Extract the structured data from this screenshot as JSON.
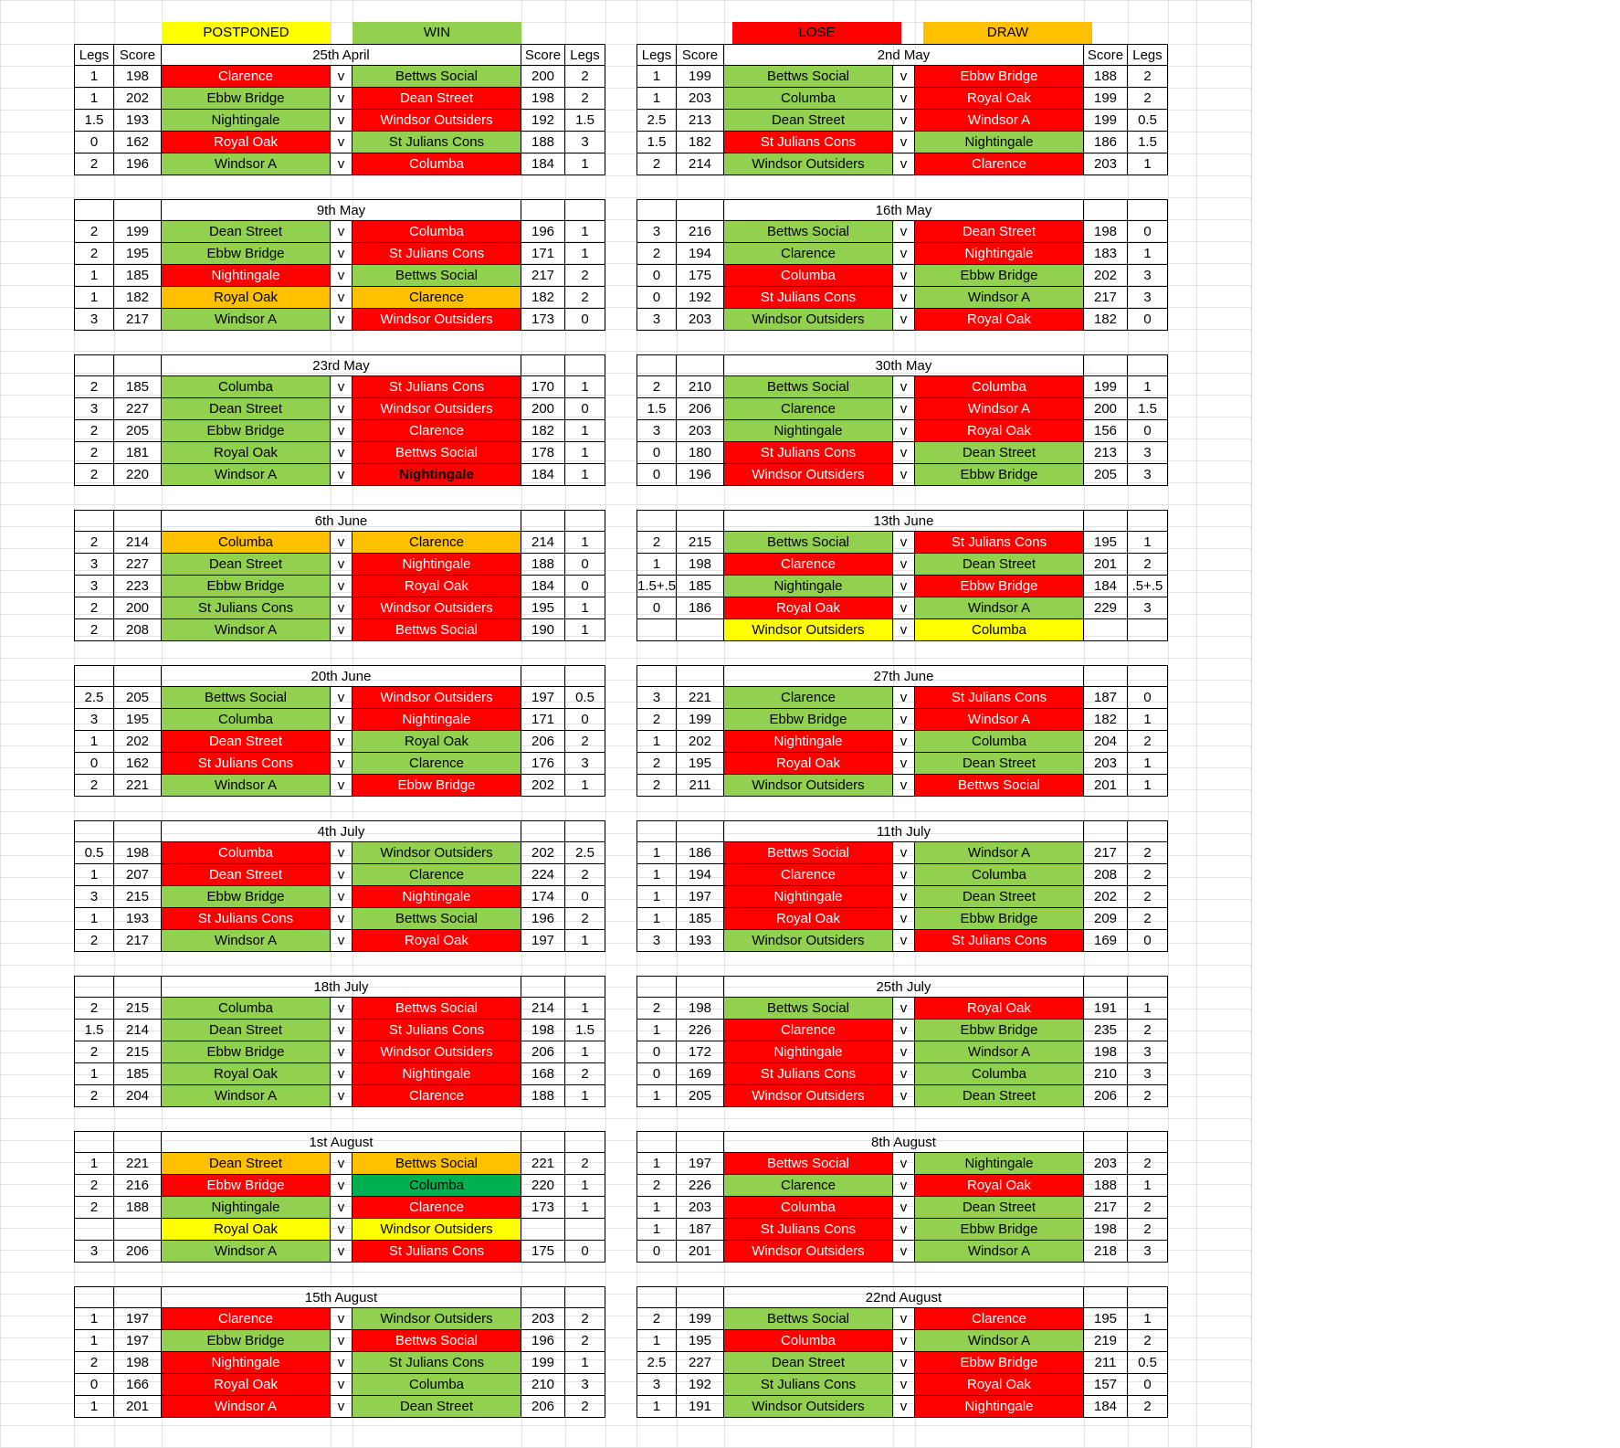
{
  "legend": [
    {
      "label": "POSTPONED",
      "color": "#ffff00"
    },
    {
      "label": "WIN",
      "color": "#92d050"
    },
    {
      "label": "LOSE",
      "color": "#ff0000"
    },
    {
      "label": "DRAW",
      "color": "#ffc000"
    }
  ],
  "headers": {
    "legs": "Legs",
    "score": "Score",
    "vs": "v"
  },
  "blocks": [
    {
      "date": "25th April",
      "header_labels": true,
      "matches": [
        [
          "1",
          "198",
          "Clarence",
          "r",
          "Bettws Social",
          "g",
          "200",
          "2"
        ],
        [
          "1",
          "202",
          "Ebbw Bridge",
          "g",
          "Dean Street",
          "r",
          "198",
          "2"
        ],
        [
          "1.5",
          "193",
          "Nightingale",
          "g",
          "Windsor Outsiders",
          "r",
          "192",
          "1.5"
        ],
        [
          "0",
          "162",
          "Royal Oak",
          "r",
          "St Julians Cons",
          "g",
          "188",
          "3"
        ],
        [
          "2",
          "196",
          "Windsor A",
          "g",
          "Columba",
          "r",
          "184",
          "1"
        ]
      ]
    },
    {
      "date": "2nd May",
      "header_labels": true,
      "matches": [
        [
          "1",
          "199",
          "Bettws Social",
          "g",
          "Ebbw Bridge",
          "r",
          "188",
          "2"
        ],
        [
          "1",
          "203",
          "Columba",
          "g",
          "Royal Oak",
          "r",
          "199",
          "2"
        ],
        [
          "2.5",
          "213",
          "Dean Street",
          "g",
          "Windsor A",
          "r",
          "199",
          "0.5"
        ],
        [
          "1.5",
          "182",
          "St Julians Cons",
          "r",
          "Nightingale",
          "g",
          "186",
          "1.5"
        ],
        [
          "2",
          "214",
          "Windsor Outsiders",
          "g",
          "Clarence",
          "r",
          "203",
          "1"
        ]
      ]
    },
    {
      "date": "9th May",
      "matches": [
        [
          "2",
          "199",
          "Dean Street",
          "g",
          "Columba",
          "r",
          "196",
          "1"
        ],
        [
          "2",
          "195",
          "Ebbw Bridge",
          "g",
          "St Julians Cons",
          "r",
          "171",
          "1"
        ],
        [
          "1",
          "185",
          "Nightingale",
          "r",
          "Bettws Social",
          "g",
          "217",
          "2"
        ],
        [
          "1",
          "182",
          "Royal Oak",
          "o",
          "Clarence",
          "o",
          "182",
          "2"
        ],
        [
          "3",
          "217",
          "Windsor A",
          "g",
          "Windsor Outsiders",
          "r",
          "173",
          "0"
        ]
      ]
    },
    {
      "date": "16th May",
      "matches": [
        [
          "3",
          "216",
          "Bettws Social",
          "g",
          "Dean Street",
          "r",
          "198",
          "0"
        ],
        [
          "2",
          "194",
          "Clarence",
          "g",
          "Nightingale",
          "r",
          "183",
          "1"
        ],
        [
          "0",
          "175",
          "Columba",
          "r",
          "Ebbw Bridge",
          "g",
          "202",
          "3"
        ],
        [
          "0",
          "192",
          "St Julians Cons",
          "r",
          "Windsor A",
          "g",
          "217",
          "3"
        ],
        [
          "3",
          "203",
          "Windsor Outsiders",
          "g",
          "Royal Oak",
          "r",
          "182",
          "0"
        ]
      ]
    },
    {
      "date": "23rd May",
      "matches": [
        [
          "2",
          "185",
          "Columba",
          "g",
          "St Julians Cons",
          "r",
          "170",
          "1"
        ],
        [
          "3",
          "227",
          "Dean Street",
          "g",
          "Windsor Outsiders",
          "r",
          "200",
          "0"
        ],
        [
          "2",
          "205",
          "Ebbw Bridge",
          "g",
          "Clarence",
          "r",
          "182",
          "1"
        ],
        [
          "2",
          "181",
          "Royal Oak",
          "g",
          "Bettws Social",
          "r",
          "178",
          "1"
        ],
        [
          "2",
          "220",
          "Windsor A",
          "g",
          "Nightingale",
          "rb",
          "184",
          "1"
        ]
      ]
    },
    {
      "date": "30th May",
      "matches": [
        [
          "2",
          "210",
          "Bettws Social",
          "g",
          "Columba",
          "r",
          "199",
          "1"
        ],
        [
          "1.5",
          "206",
          "Clarence",
          "g",
          "Windsor A",
          "r",
          "200",
          "1.5"
        ],
        [
          "3",
          "203",
          "Nightingale",
          "g",
          "Royal Oak",
          "r",
          "156",
          "0"
        ],
        [
          "0",
          "180",
          "St Julians Cons",
          "r",
          "Dean Street",
          "g",
          "213",
          "3"
        ],
        [
          "0",
          "196",
          "Windsor Outsiders",
          "r",
          "Ebbw Bridge",
          "g",
          "205",
          "3"
        ]
      ]
    },
    {
      "date": "6th June",
      "matches": [
        [
          "2",
          "214",
          "Columba",
          "o",
          "Clarence",
          "o",
          "214",
          "1"
        ],
        [
          "3",
          "227",
          "Dean Street",
          "g",
          "Nightingale",
          "r",
          "188",
          "0"
        ],
        [
          "3",
          "223",
          "Ebbw Bridge",
          "g",
          "Royal Oak",
          "r",
          "184",
          "0"
        ],
        [
          "2",
          "200",
          "St Julians Cons",
          "g",
          "Windsor Outsiders",
          "r",
          "195",
          "1"
        ],
        [
          "2",
          "208",
          "Windsor A",
          "g",
          "Bettws Social",
          "r",
          "190",
          "1"
        ]
      ]
    },
    {
      "date": "13th June",
      "matches": [
        [
          "2",
          "215",
          "Bettws Social",
          "g",
          "St Julians Cons",
          "r",
          "195",
          "1"
        ],
        [
          "1",
          "198",
          "Clarence",
          "r",
          "Dean Street",
          "g",
          "201",
          "2"
        ],
        [
          "1.5+.5",
          "185",
          "Nightingale",
          "g",
          "Ebbw Bridge",
          "r",
          "184",
          ".5+.5"
        ],
        [
          "0",
          "186",
          "Royal Oak",
          "r",
          "Windsor A",
          "g",
          "229",
          "3"
        ],
        [
          "",
          "",
          "Windsor Outsiders",
          "y",
          "Columba",
          "y",
          "",
          ""
        ]
      ]
    },
    {
      "date": "20th June",
      "matches": [
        [
          "2.5",
          "205",
          "Bettws Social",
          "g",
          "Windsor Outsiders",
          "r",
          "197",
          "0.5"
        ],
        [
          "3",
          "195",
          "Columba",
          "g",
          "Nightingale",
          "r",
          "171",
          "0"
        ],
        [
          "1",
          "202",
          "Dean Street",
          "r",
          "Royal Oak",
          "g",
          "206",
          "2"
        ],
        [
          "0",
          "162",
          "St Julians Cons",
          "r",
          "Clarence",
          "g",
          "176",
          "3"
        ],
        [
          "2",
          "221",
          "Windsor A",
          "g",
          "Ebbw Bridge",
          "r",
          "202",
          "1"
        ]
      ]
    },
    {
      "date": "27th June",
      "matches": [
        [
          "3",
          "221",
          "Clarence",
          "g",
          "St Julians Cons",
          "r",
          "187",
          "0"
        ],
        [
          "2",
          "199",
          "Ebbw Bridge",
          "g",
          "Windsor A",
          "r",
          "182",
          "1"
        ],
        [
          "1",
          "202",
          "Nightingale",
          "r",
          "Columba",
          "g",
          "204",
          "2"
        ],
        [
          "2",
          "195",
          "Royal Oak",
          "r",
          "Dean Street",
          "g",
          "203",
          "1"
        ],
        [
          "2",
          "211",
          "Windsor Outsiders",
          "g",
          "Bettws Social",
          "r",
          "201",
          "1"
        ]
      ]
    },
    {
      "date": "4th July",
      "matches": [
        [
          "0.5",
          "198",
          "Columba",
          "r",
          "Windsor Outsiders",
          "g",
          "202",
          "2.5"
        ],
        [
          "1",
          "207",
          "Dean Street",
          "r",
          "Clarence",
          "g",
          "224",
          "2"
        ],
        [
          "3",
          "215",
          "Ebbw Bridge",
          "g",
          "Nightingale",
          "r",
          "174",
          "0"
        ],
        [
          "1",
          "193",
          "St Julians Cons",
          "r",
          "Bettws Social",
          "g",
          "196",
          "2"
        ],
        [
          "2",
          "217",
          "Windsor A",
          "g",
          "Royal Oak",
          "r",
          "197",
          "1"
        ]
      ]
    },
    {
      "date": "11th July",
      "matches": [
        [
          "1",
          "186",
          "Bettws Social",
          "r",
          "Windsor A",
          "g",
          "217",
          "2"
        ],
        [
          "1",
          "194",
          "Clarence",
          "r",
          "Columba",
          "g",
          "208",
          "2"
        ],
        [
          "1",
          "197",
          "Nightingale",
          "r",
          "Dean Street",
          "g",
          "202",
          "2"
        ],
        [
          "1",
          "185",
          "Royal Oak",
          "r",
          "Ebbw Bridge",
          "g",
          "209",
          "2"
        ],
        [
          "3",
          "193",
          "Windsor Outsiders",
          "g",
          "St Julians Cons",
          "r",
          "169",
          "0"
        ]
      ]
    },
    {
      "date": "18th July",
      "matches": [
        [
          "2",
          "215",
          "Columba",
          "g",
          "Bettws Social",
          "r",
          "214",
          "1"
        ],
        [
          "1.5",
          "214",
          "Dean Street",
          "g",
          "St Julians Cons",
          "r",
          "198",
          "1.5"
        ],
        [
          "2",
          "215",
          "Ebbw Bridge",
          "g",
          "Windsor Outsiders",
          "r",
          "206",
          "1"
        ],
        [
          "1",
          "185",
          "Royal Oak",
          "g",
          "Nightingale",
          "r",
          "168",
          "2"
        ],
        [
          "2",
          "204",
          "Windsor A",
          "g",
          "Clarence",
          "r",
          "188",
          "1"
        ]
      ]
    },
    {
      "date": "25th July",
      "matches": [
        [
          "2",
          "198",
          "Bettws Social",
          "g",
          "Royal Oak",
          "r",
          "191",
          "1"
        ],
        [
          "1",
          "226",
          "Clarence",
          "r",
          "Ebbw Bridge",
          "g",
          "235",
          "2"
        ],
        [
          "0",
          "172",
          "Nightingale",
          "r",
          "Windsor A",
          "g",
          "198",
          "3"
        ],
        [
          "0",
          "169",
          "St Julians Cons",
          "r",
          "Columba",
          "g",
          "210",
          "3"
        ],
        [
          "1",
          "205",
          "Windsor Outsiders",
          "r",
          "Dean Street",
          "g",
          "206",
          "2"
        ]
      ]
    },
    {
      "date": "1st August",
      "matches": [
        [
          "1",
          "221",
          "Dean Street",
          "o",
          "Bettws Social",
          "o",
          "221",
          "2"
        ],
        [
          "2",
          "216",
          "Ebbw Bridge",
          "r",
          "Columba",
          "dg",
          "220",
          "1"
        ],
        [
          "2",
          "188",
          "Nightingale",
          "g",
          "Clarence",
          "r",
          "173",
          "1"
        ],
        [
          "",
          "",
          "Royal Oak",
          "y",
          "Windsor Outsiders",
          "y",
          "",
          ""
        ],
        [
          "3",
          "206",
          "Windsor A",
          "g",
          "St Julians Cons",
          "r",
          "175",
          "0"
        ]
      ]
    },
    {
      "date": "8th August",
      "matches": [
        [
          "1",
          "197",
          "Bettws Social",
          "r",
          "Nightingale",
          "g",
          "203",
          "2"
        ],
        [
          "2",
          "226",
          "Clarence",
          "g",
          "Royal Oak",
          "r",
          "188",
          "1"
        ],
        [
          "1",
          "203",
          "Columba",
          "r",
          "Dean Street",
          "g",
          "217",
          "2"
        ],
        [
          "1",
          "187",
          "St Julians Cons",
          "r",
          "Ebbw Bridge",
          "g",
          "198",
          "2"
        ],
        [
          "0",
          "201",
          "Windsor Outsiders",
          "r",
          "Windsor A",
          "g",
          "218",
          "3"
        ]
      ]
    },
    {
      "date": "15th August",
      "matches": [
        [
          "1",
          "197",
          "Clarence",
          "r",
          "Windsor Outsiders",
          "g",
          "203",
          "2"
        ],
        [
          "1",
          "197",
          "Ebbw Bridge",
          "g",
          "Bettws Social",
          "r",
          "196",
          "2"
        ],
        [
          "2",
          "198",
          "Nightingale",
          "r",
          "St Julians Cons",
          "g",
          "199",
          "1"
        ],
        [
          "0",
          "166",
          "Royal Oak",
          "r",
          "Columba",
          "g",
          "210",
          "3"
        ],
        [
          "1",
          "201",
          "Windsor A",
          "r",
          "Dean Street",
          "g",
          "206",
          "2"
        ]
      ]
    },
    {
      "date": "22nd August",
      "matches": [
        [
          "2",
          "199",
          "Bettws Social",
          "g",
          "Clarence",
          "r",
          "195",
          "1"
        ],
        [
          "1",
          "195",
          "Columba",
          "r",
          "Windsor A",
          "g",
          "219",
          "2"
        ],
        [
          "2.5",
          "227",
          "Dean Street",
          "g",
          "Ebbw Bridge",
          "r",
          "211",
          "0.5"
        ],
        [
          "3",
          "192",
          "St Julians Cons",
          "g",
          "Royal Oak",
          "r",
          "157",
          "0"
        ],
        [
          "1",
          "191",
          "Windsor Outsiders",
          "g",
          "Nightingale",
          "r",
          "184",
          "2"
        ]
      ]
    }
  ]
}
